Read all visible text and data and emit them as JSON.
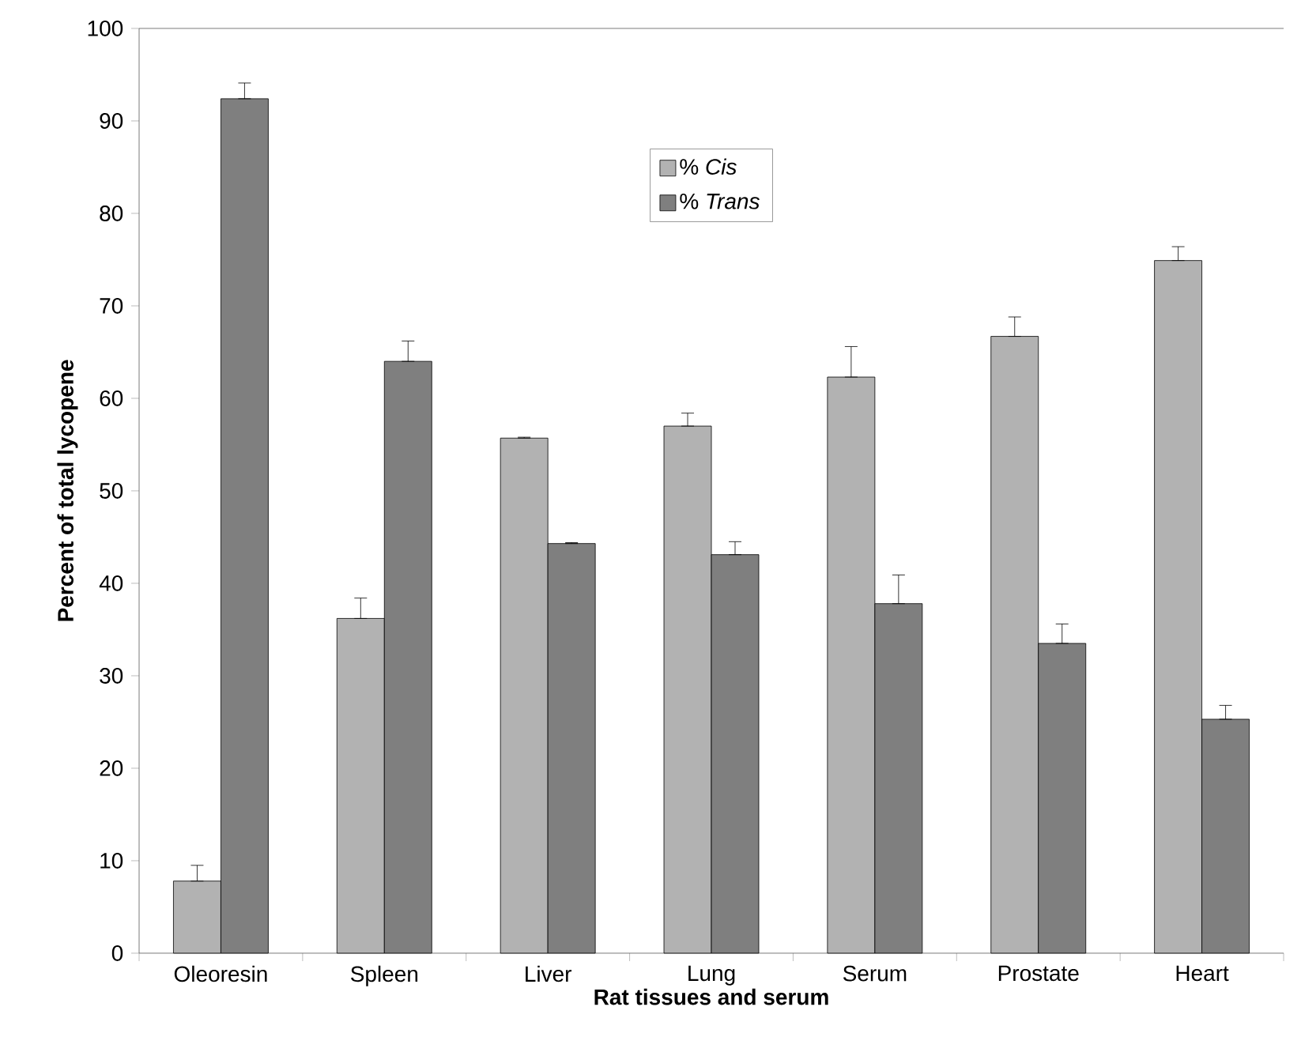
{
  "chart_data": {
    "type": "bar",
    "xlabel": "Rat tissues and serum",
    "ylabel": "Percent of total lycopene",
    "categories": [
      "Oleoresin",
      "Spleen",
      "Liver",
      "Lung",
      "Serum",
      "Prostate",
      "Heart"
    ],
    "series": [
      {
        "name": "% *Cis*",
        "color": "#b2b2b2",
        "values": [
          7.8,
          36.2,
          55.7,
          57.0,
          62.3,
          66.7,
          74.9
        ],
        "errors": [
          [
            7.8,
            9.5
          ],
          [
            36.2,
            38.4
          ],
          [
            55.7,
            55.8
          ],
          [
            57.0,
            58.4
          ],
          [
            62.3,
            65.6
          ],
          [
            66.7,
            68.8
          ],
          [
            74.9,
            76.4
          ]
        ]
      },
      {
        "name": "% *Trans*",
        "color": "#7f7f7f",
        "values": [
          92.4,
          64.0,
          44.3,
          43.1,
          37.8,
          33.5,
          25.3
        ],
        "errors": [
          [
            92.4,
            94.1
          ],
          [
            64.0,
            66.2
          ],
          [
            44.3,
            44.4
          ],
          [
            43.1,
            44.5
          ],
          [
            37.8,
            40.9
          ],
          [
            33.5,
            35.6
          ],
          [
            25.3,
            26.8
          ]
        ]
      }
    ],
    "ylim": [
      0,
      100
    ],
    "yticks": [
      0,
      10,
      20,
      30,
      40,
      50,
      60,
      70,
      80,
      90,
      100
    ],
    "grid": false,
    "legend": "top"
  }
}
